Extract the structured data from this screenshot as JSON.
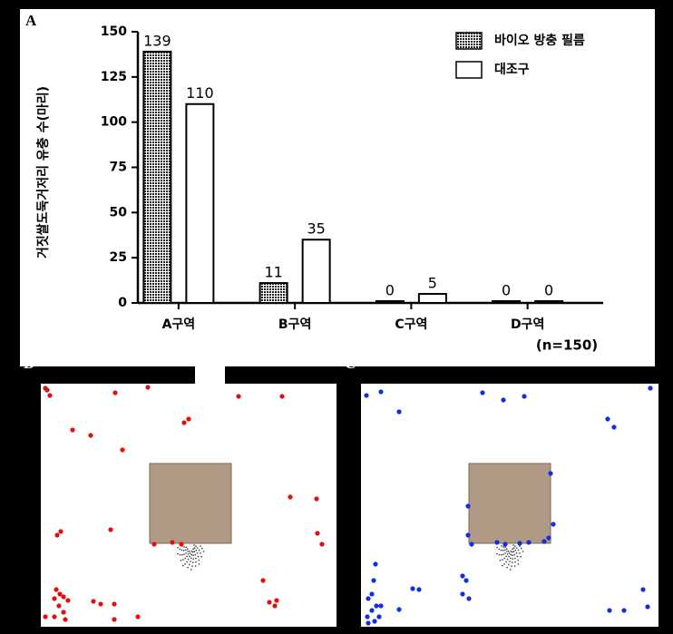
{
  "panel_labels": [
    "A",
    "B",
    "C"
  ],
  "chart_data": {
    "type": "bar",
    "y_label": "거짓쌀도둑거저리 유충 수(마리)",
    "categories": [
      "A구역",
      "B구역",
      "C구역",
      "D구역"
    ],
    "series": [
      {
        "name": "바이오 방충 필름",
        "color": "#222222",
        "values": [
          139,
          11,
          0,
          0
        ]
      },
      {
        "name": "대조구",
        "color": "#ffffff",
        "values": [
          110,
          35,
          5,
          0
        ]
      }
    ],
    "ylim": [
      0,
      150
    ],
    "yticks": [
      0,
      25,
      50,
      75,
      100,
      125,
      150
    ],
    "annotation": "(n=150)",
    "legend": "top-right"
  }
}
